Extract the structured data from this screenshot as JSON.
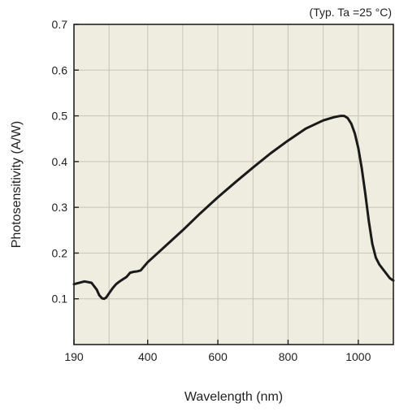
{
  "chart_data": {
    "type": "line",
    "annotation": "(Typ. Ta =25 °C)",
    "xlabel": "Wavelength (nm)",
    "ylabel": "Photosensitivity (A/W)",
    "xlim": [
      190,
      1100
    ],
    "ylim": [
      0,
      0.7
    ],
    "x_ticks": [
      190,
      400,
      600,
      800,
      1000
    ],
    "y_ticks": [
      0.1,
      0.2,
      0.3,
      0.4,
      0.5,
      0.6,
      0.7
    ],
    "x_tick_labels": [
      "190",
      "400",
      "600",
      "800",
      "1000"
    ],
    "y_tick_labels": [
      "0.1",
      "0.2",
      "0.3",
      "0.4",
      "0.5",
      "0.6",
      "0.7"
    ],
    "x_grid": [
      290,
      400,
      500,
      600,
      700,
      800,
      900,
      1000
    ],
    "y_grid": [
      0.1,
      0.2,
      0.3,
      0.4,
      0.5,
      0.6
    ],
    "grid": true,
    "series": [
      {
        "x": [
          190,
          200,
          220,
          240,
          255,
          262,
          270,
          276,
          282,
          290,
          300,
          310,
          320,
          330,
          340,
          350,
          360,
          370,
          380,
          400,
          450,
          500,
          550,
          600,
          650,
          700,
          750,
          800,
          850,
          900,
          930,
          950,
          960,
          970,
          980,
          990,
          1000,
          1010,
          1020,
          1030,
          1040,
          1050,
          1060,
          1070,
          1080,
          1090,
          1100
        ],
        "y": [
          0.132,
          0.134,
          0.138,
          0.135,
          0.12,
          0.108,
          0.101,
          0.1,
          0.103,
          0.112,
          0.123,
          0.132,
          0.138,
          0.143,
          0.148,
          0.157,
          0.159,
          0.16,
          0.162,
          0.18,
          0.215,
          0.25,
          0.287,
          0.322,
          0.355,
          0.387,
          0.418,
          0.446,
          0.472,
          0.49,
          0.497,
          0.5,
          0.5,
          0.495,
          0.483,
          0.462,
          0.43,
          0.385,
          0.33,
          0.27,
          0.22,
          0.19,
          0.175,
          0.165,
          0.155,
          0.145,
          0.14
        ],
        "color": "#1a1a1a"
      }
    ],
    "colors": {
      "plot_background": "#efede0",
      "grid": "#c7c4b5",
      "axis": "#222222",
      "line": "#1a1a1a"
    }
  }
}
